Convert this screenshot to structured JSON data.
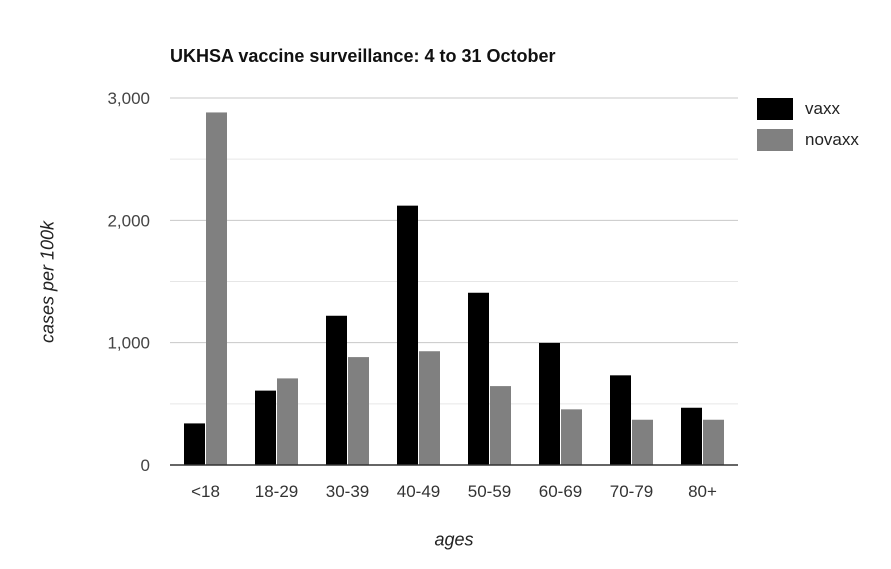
{
  "chart_data": {
    "type": "bar",
    "title": "UKHSA vaccine surveillance: 4 to 31 October",
    "xlabel": "ages",
    "ylabel": "cases per 100k",
    "categories": [
      "<18",
      "18-29",
      "30-39",
      "40-49",
      "50-59",
      "60-69",
      "70-79",
      "80+"
    ],
    "series": [
      {
        "name": "vaxx",
        "color": "#000000",
        "values": [
          340,
          608,
          1220,
          2120,
          1408,
          998,
          733,
          468
        ]
      },
      {
        "name": "novaxx",
        "color": "#808080",
        "values": [
          2882,
          708,
          882,
          930,
          645,
          455,
          370,
          370
        ]
      }
    ],
    "ylim": [
      0,
      3000
    ],
    "yticks": [
      0,
      1000,
      2000,
      3000
    ],
    "ytick_labels": [
      "0",
      "1,000",
      "2,000",
      "3,000"
    ],
    "grid": true,
    "legend_position": "top-right"
  }
}
